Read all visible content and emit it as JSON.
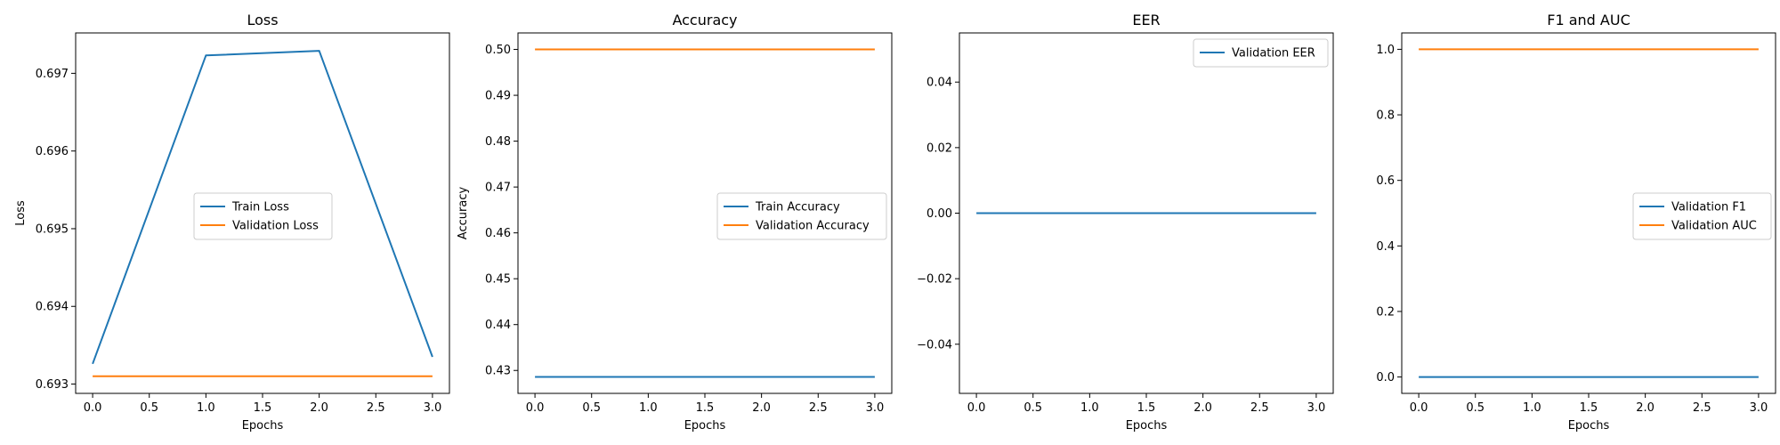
{
  "chart_data": [
    {
      "type": "line",
      "title": "Loss",
      "xlabel": "Epochs",
      "ylabel": "Loss",
      "x": [
        0,
        1,
        2,
        3
      ],
      "xlim": [
        -0.15,
        3.15
      ],
      "ylim": [
        0.69288,
        0.69752
      ],
      "xticks": [
        0,
        0.5,
        1,
        1.5,
        2,
        2.5,
        3
      ],
      "xtick_labels": [
        "0.0",
        "0.5",
        "1.0",
        "1.5",
        "2.0",
        "2.5",
        "3.0"
      ],
      "yticks": [
        0.693,
        0.694,
        0.695,
        0.696,
        0.697
      ],
      "ytick_labels": [
        "0.693",
        "0.694",
        "0.695",
        "0.696",
        "0.697"
      ],
      "legend": "center",
      "series": [
        {
          "name": "Train Loss",
          "color": "#1f77b4",
          "values": [
            0.69326,
            0.69723,
            0.69729,
            0.69335
          ]
        },
        {
          "name": "Validation Loss",
          "color": "#ff7f0e",
          "values": [
            0.6931,
            0.6931,
            0.6931,
            0.6931
          ]
        }
      ]
    },
    {
      "type": "line",
      "title": "Accuracy",
      "xlabel": "Epochs",
      "ylabel": "Accuracy",
      "x": [
        0,
        1,
        2,
        3
      ],
      "xlim": [
        -0.15,
        3.15
      ],
      "ylim": [
        0.425,
        0.5036
      ],
      "xticks": [
        0,
        0.5,
        1,
        1.5,
        2,
        2.5,
        3
      ],
      "xtick_labels": [
        "0.0",
        "0.5",
        "1.0",
        "1.5",
        "2.0",
        "2.5",
        "3.0"
      ],
      "yticks": [
        0.43,
        0.44,
        0.45,
        0.46,
        0.47,
        0.48,
        0.49,
        0.5
      ],
      "ytick_labels": [
        "0.43",
        "0.44",
        "0.45",
        "0.46",
        "0.47",
        "0.48",
        "0.49",
        "0.50"
      ],
      "legend": "center right",
      "series": [
        {
          "name": "Train Accuracy",
          "color": "#1f77b4",
          "values": [
            0.4286,
            0.4286,
            0.4286,
            0.4286
          ]
        },
        {
          "name": "Validation Accuracy",
          "color": "#ff7f0e",
          "values": [
            0.5,
            0.5,
            0.5,
            0.5
          ]
        }
      ]
    },
    {
      "type": "line",
      "title": "EER",
      "xlabel": "",
      "ylabel": "",
      "x": [
        0,
        1,
        2,
        3
      ],
      "xlim": [
        -0.15,
        3.15
      ],
      "ylim": [
        -0.055,
        0.055
      ],
      "xticks": [
        0,
        0.5,
        1,
        1.5,
        2,
        2.5,
        3
      ],
      "xtick_labels": [
        "0.0",
        "0.5",
        "1.0",
        "1.5",
        "2.0",
        "2.5",
        "3.0"
      ],
      "yticks": [
        -0.04,
        -0.02,
        0.0,
        0.02,
        0.04
      ],
      "ytick_labels": [
        "−0.04",
        "−0.02",
        "0.00",
        "0.02",
        "0.04"
      ],
      "legend": "upper right",
      "series": [
        {
          "name": "Validation EER",
          "color": "#1f77b4",
          "values": [
            0,
            0,
            0,
            0
          ]
        }
      ]
    },
    {
      "type": "line",
      "title": "F1 and AUC",
      "xlabel": "Epochs",
      "ylabel": "",
      "x": [
        0,
        1,
        2,
        3
      ],
      "xlim": [
        -0.15,
        3.15
      ],
      "ylim": [
        -0.05,
        1.05
      ],
      "xticks": [
        0,
        0.5,
        1,
        1.5,
        2,
        2.5,
        3
      ],
      "xtick_labels": [
        "0.0",
        "0.5",
        "1.0",
        "1.5",
        "2.0",
        "2.5",
        "3.0"
      ],
      "yticks": [
        0,
        0.2,
        0.4,
        0.6,
        0.8,
        1.0
      ],
      "ytick_labels": [
        "0.0",
        "0.2",
        "0.4",
        "0.6",
        "0.8",
        "1.0"
      ],
      "legend": "center right",
      "series": [
        {
          "name": "Validation F1",
          "color": "#1f77b4",
          "values": [
            0,
            0,
            0,
            0
          ]
        },
        {
          "name": "Validation AUC",
          "color": "#ff7f0e",
          "values": [
            1,
            1,
            1,
            1
          ]
        }
      ]
    }
  ],
  "epochs_label_eer": "Epochs"
}
